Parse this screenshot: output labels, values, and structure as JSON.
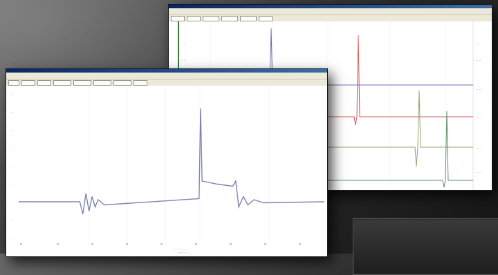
{
  "back_window": {
    "menu": [
      "",
      "",
      "",
      "",
      ""
    ],
    "toolbar": [
      "",
      "",
      "",
      "",
      "",
      ""
    ],
    "channel_colors": [
      "#6f72b0",
      "#d05a5a",
      "#8fa86e",
      "#5f8f6a"
    ]
  },
  "front_window": {
    "menu": [
      "",
      "",
      "",
      ""
    ],
    "toolbar": [
      "",
      "",
      "",
      "",
      "",
      "",
      "",
      ""
    ],
    "trace_color": "#7e84b2"
  },
  "chart_data": {
    "type": "line",
    "xlim": [
      0,
      1
    ],
    "ylim": [
      -1,
      1
    ],
    "series": [
      {
        "values": [
          [
            0,
            0
          ],
          [
            0.2,
            0
          ],
          [
            0.21,
            -0.12
          ],
          [
            0.22,
            0.08
          ],
          [
            0.23,
            -0.09
          ],
          [
            0.24,
            0.05
          ],
          [
            0.25,
            -0.05
          ],
          [
            0.26,
            0.02
          ],
          [
            0.28,
            -0.03
          ],
          [
            0.59,
            0.03
          ],
          [
            0.595,
            0.9
          ],
          [
            0.6,
            0.2
          ],
          [
            0.65,
            0.17
          ],
          [
            0.7,
            0.15
          ],
          [
            0.71,
            0.2
          ],
          [
            0.72,
            -0.05
          ],
          [
            0.735,
            0.05
          ],
          [
            0.75,
            -0.03
          ],
          [
            0.77,
            0.02
          ],
          [
            0.8,
            -0.01
          ],
          [
            1,
            0
          ]
        ]
      }
    ]
  }
}
